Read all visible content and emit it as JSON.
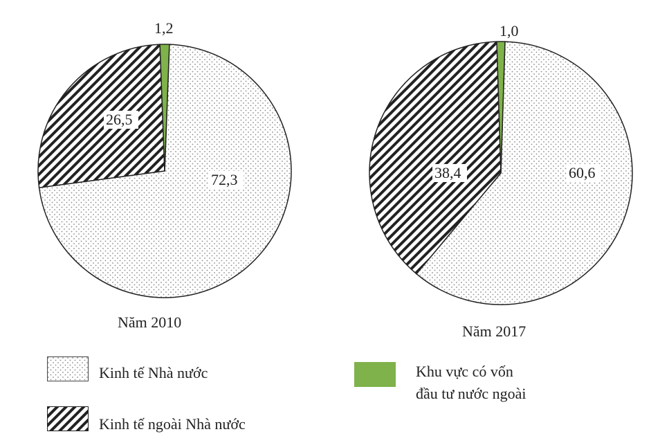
{
  "chart_data": [
    {
      "type": "pie",
      "title": "Năm 2010",
      "slices": [
        {
          "label": "Kinh tế Nhà nước",
          "value": 72.3,
          "text": "72,3"
        },
        {
          "label": "Kinh tế ngoài Nhà nước",
          "value": 26.5,
          "text": "26,5"
        },
        {
          "label": "Khu vực có vốn đầu tư nước ngoài",
          "value": 1.2,
          "text": "1,2"
        }
      ]
    },
    {
      "type": "pie",
      "title": "Năm 2017",
      "slices": [
        {
          "label": "Kinh tế Nhà nước",
          "value": 60.6,
          "text": "60,6"
        },
        {
          "label": "Kinh tế ngoài Nhà nước",
          "value": 38.4,
          "text": "38,4"
        },
        {
          "label": "Khu vực có vốn đầu tư nước ngoài",
          "value": 1.0,
          "text": "1,0"
        }
      ]
    }
  ],
  "legend": [
    {
      "label": "Kinh tế Nhà nước",
      "pattern": "dots"
    },
    {
      "label": "Kinh tế ngoài Nhà nước",
      "pattern": "hatch"
    },
    {
      "label": "Khu vực có vốn đầu tư nước ngoài",
      "line1": "Khu vực có vốn",
      "line2": "đầu tư nước ngoài",
      "pattern": "solid",
      "color": "#7fb24a"
    }
  ],
  "colors": {
    "foreign": "#7fb24a",
    "stroke": "#222222",
    "dot": "#888888"
  }
}
